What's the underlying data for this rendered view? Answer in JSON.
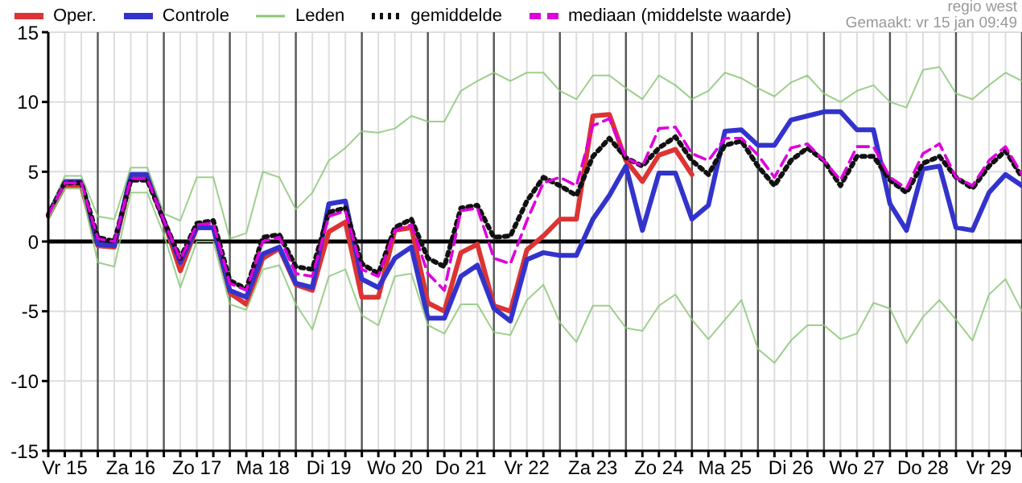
{
  "chart_data": {
    "type": "line",
    "legend": "top",
    "grid": true,
    "annotations": [
      "regio west",
      "Gemaakt: vr 15 jan 09:49"
    ],
    "categories": [
      null,
      "Vr 15",
      null,
      null,
      null,
      "Za 16",
      null,
      null,
      null,
      "Zo 17",
      null,
      null,
      null,
      "Ma 18",
      null,
      null,
      null,
      "Di 19",
      null,
      null,
      null,
      "Wo 20",
      null,
      null,
      null,
      "Do 21",
      null,
      null,
      null,
      "Vr 22",
      null,
      null,
      null,
      "Za 23",
      null,
      null,
      null,
      "Zo 24",
      null,
      null,
      null,
      "Ma 25",
      null,
      null,
      null,
      "Di 26",
      null,
      null,
      null,
      "Wo 27",
      null,
      null,
      null,
      "Do 28",
      null,
      null,
      null,
      "Vr 29",
      null,
      null
    ],
    "ylim": [
      -15,
      15
    ],
    "yticks": [
      -15,
      -10,
      -5,
      0,
      5,
      10,
      15
    ],
    "ref_lines": [
      {
        "axis": "y",
        "value": 0,
        "color": "#000000"
      }
    ],
    "series": [
      {
        "name": "Oper.",
        "color": "#dd3333",
        "line_style": "solid",
        "values": [
          1.8,
          4.0,
          4.0,
          -0.3,
          -0.4,
          4.5,
          4.6,
          1.5,
          -2.1,
          1.0,
          1.0,
          -3.7,
          -4.5,
          -1.2,
          -0.5,
          -3.1,
          -3.5,
          0.7,
          1.4,
          -4.0,
          -4.0,
          0.8,
          1.0,
          -4.4,
          -5.0,
          -0.8,
          -0.2,
          -4.6,
          -5.0,
          -0.6,
          0.4,
          1.6,
          1.6,
          9.0,
          9.1,
          5.8,
          4.3,
          6.2,
          6.6,
          4.8,
          null,
          null,
          null,
          null,
          null,
          null,
          null,
          null,
          null,
          null,
          null,
          null,
          null,
          null,
          null,
          null,
          null,
          null,
          null,
          null
        ]
      },
      {
        "name": "Controle",
        "color": "#3333cc",
        "line_style": "solid",
        "values": [
          1.9,
          4.3,
          4.3,
          -0.2,
          -0.3,
          4.8,
          4.8,
          1.5,
          -1.5,
          1.0,
          1.0,
          -3.5,
          -4.0,
          -0.9,
          -0.4,
          -3.0,
          -3.3,
          2.7,
          2.9,
          -2.7,
          -3.3,
          -1.2,
          -0.4,
          -5.5,
          -5.5,
          -2.5,
          -1.7,
          -4.8,
          -5.7,
          -1.3,
          -0.8,
          -1.0,
          -1.0,
          1.6,
          3.3,
          5.4,
          0.8,
          4.9,
          4.9,
          1.6,
          2.6,
          7.9,
          8.0,
          6.9,
          6.9,
          8.7,
          9.0,
          9.3,
          9.3,
          8.0,
          8.0,
          2.7,
          0.8,
          5.2,
          5.4,
          1.0,
          0.8,
          3.5,
          4.8,
          4.0
        ]
      },
      {
        "name": "Leden",
        "color": "#8cc878",
        "line_style": "solid",
        "values": [
          2.0,
          4.7,
          4.7,
          1.8,
          1.6,
          5.3,
          5.3,
          2.0,
          1.5,
          4.6,
          4.6,
          0.2,
          0.6,
          5.0,
          4.6,
          2.3,
          3.5,
          5.8,
          6.7,
          7.9,
          7.8,
          8.1,
          9.0,
          8.6,
          8.6,
          10.8,
          11.5,
          12.1,
          11.5,
          12.1,
          12.1,
          10.8,
          10.2,
          11.9,
          11.9,
          11.0,
          10.2,
          11.9,
          11.2,
          10.2,
          10.8,
          12.1,
          11.7,
          11.0,
          10.4,
          11.4,
          11.9,
          10.6,
          10.0,
          10.8,
          11.2,
          10.0,
          9.6,
          12.3,
          12.5,
          10.6,
          10.2,
          11.2,
          12.1,
          11.5
        ]
      },
      {
        "name": "gemiddelde",
        "color": "#111111",
        "line_style": "dotted",
        "values": [
          1.9,
          4.2,
          4.2,
          0.3,
          0.0,
          4.4,
          4.4,
          1.5,
          -1.2,
          1.3,
          1.5,
          -2.8,
          -3.4,
          0.3,
          0.5,
          -1.8,
          -2.0,
          2.1,
          2.4,
          -1.6,
          -2.3,
          1.0,
          1.6,
          -1.2,
          -1.8,
          2.4,
          2.6,
          0.3,
          0.4,
          2.9,
          4.6,
          4.0,
          3.3,
          6.1,
          7.4,
          6.0,
          5.4,
          6.7,
          7.5,
          5.8,
          4.8,
          6.9,
          7.2,
          5.4,
          4.0,
          5.8,
          6.7,
          5.8,
          4.0,
          6.1,
          6.1,
          4.4,
          3.5,
          5.6,
          6.1,
          4.6,
          3.8,
          5.4,
          6.5,
          4.6
        ]
      },
      {
        "name": "mediaan (middelste waarde)",
        "color": "#dd00dd",
        "line_style": "dashed",
        "values": [
          1.9,
          4.2,
          4.2,
          0.2,
          0.0,
          4.5,
          4.5,
          1.5,
          -1.3,
          1.2,
          1.3,
          -3.0,
          -3.5,
          0.0,
          0.3,
          -2.3,
          -2.5,
          1.8,
          2.2,
          -2.0,
          -2.5,
          0.8,
          1.2,
          -2.3,
          -3.5,
          2.2,
          2.4,
          -1.2,
          -1.6,
          1.5,
          4.2,
          4.6,
          4.0,
          8.3,
          8.8,
          6.0,
          5.4,
          8.1,
          8.2,
          6.3,
          5.8,
          7.4,
          7.4,
          6.2,
          4.6,
          6.7,
          7.0,
          5.8,
          4.4,
          6.8,
          6.8,
          4.6,
          3.8,
          6.3,
          7.0,
          4.6,
          4.0,
          5.8,
          6.8,
          4.8
        ]
      },
      {
        "color": "#8cc878",
        "line_style": "solid",
        "values": [
          1.6,
          3.8,
          3.8,
          -1.5,
          -1.8,
          3.5,
          3.5,
          0.5,
          -3.3,
          0.0,
          0.0,
          -4.5,
          -4.9,
          -2.0,
          -1.7,
          -4.5,
          -6.3,
          -2.5,
          -2.0,
          -5.3,
          -6.0,
          -2.5,
          -2.3,
          -6.0,
          -6.6,
          -4.5,
          -4.5,
          -6.5,
          -6.7,
          -4.2,
          -3.1,
          -5.8,
          -7.2,
          -4.6,
          -4.6,
          -6.2,
          -6.4,
          -4.6,
          -3.8,
          -5.6,
          -7.0,
          -5.6,
          -4.2,
          -7.7,
          -8.7,
          -7.1,
          -6.0,
          -6.0,
          -7.0,
          -6.6,
          -4.4,
          -4.8,
          -7.3,
          -5.4,
          -4.2,
          -5.6,
          -7.1,
          -3.8,
          -2.7,
          -5.0
        ]
      }
    ]
  }
}
